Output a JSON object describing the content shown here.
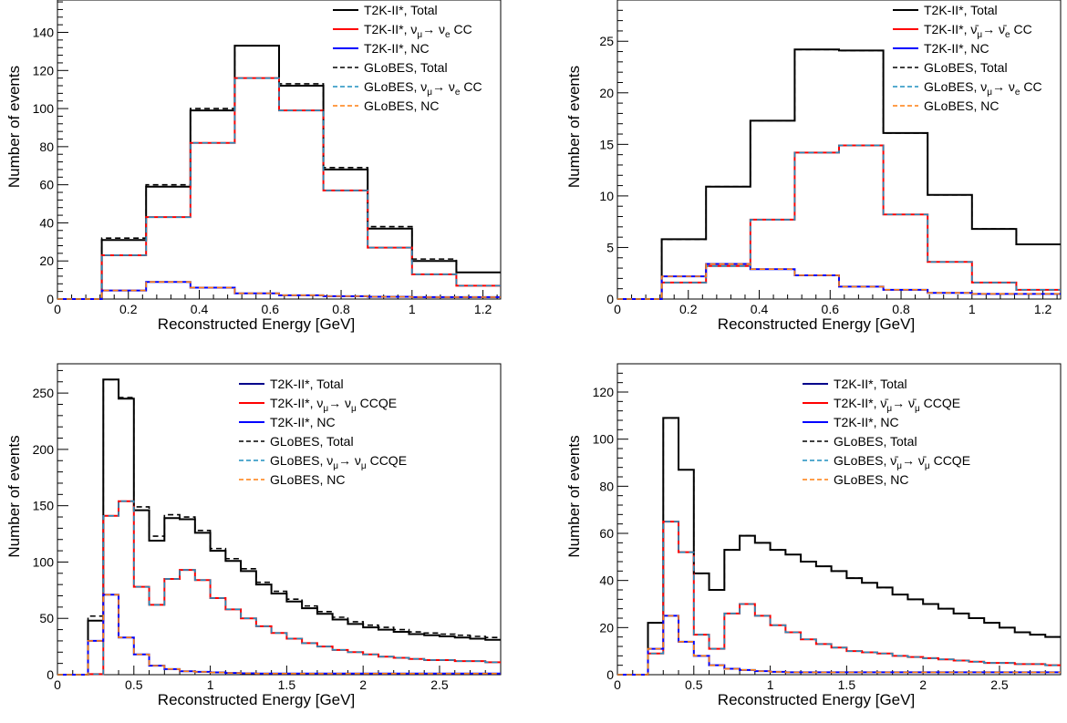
{
  "colors": {
    "total_t2k": "#000000",
    "cc_t2k": "#ff0000",
    "nc_t2k": "#0000ff",
    "total_globes": "#000000",
    "cc_globes": "#1f8fbf",
    "nc_globes": "#ff7f0e"
  },
  "chart_data": [
    {
      "type": "histogram",
      "panel": "top-left",
      "xlabel": "Reconstructed Energy [GeV]",
      "ylabel": "Number of events",
      "xlim": [
        0,
        1.25
      ],
      "ylim": [
        0,
        157
      ],
      "xticks": [
        0,
        0.2,
        0.4,
        0.6,
        0.8,
        1,
        1.2
      ],
      "xtick_labels": [
        "0",
        "0.2",
        "0.4",
        "0.6",
        "0.8",
        "1",
        "1.2"
      ],
      "yticks": [
        0,
        20,
        40,
        60,
        80,
        100,
        120,
        140
      ],
      "ytick_labels": [
        "0",
        "20",
        "40",
        "60",
        "80",
        "100",
        "120",
        "140"
      ],
      "bin_edges": [
        0,
        0.125,
        0.25,
        0.375,
        0.5,
        0.625,
        0.75,
        0.875,
        1.0,
        1.125,
        1.25
      ],
      "legend_placement": "top-right",
      "series": [
        {
          "name": "T2K-II*, Total",
          "style": "solid",
          "color_key": "total_t2k",
          "values": [
            0,
            31,
            59,
            99,
            133,
            112,
            68,
            37,
            20,
            14
          ]
        },
        {
          "name": "T2K-II*, ν​μ→ νe CC",
          "label_parts": [
            "T2K-II*, ν",
            "μ",
            "→ ν",
            "e",
            " CC"
          ],
          "style": "solid",
          "color_key": "cc_t2k",
          "values": [
            0,
            23,
            43,
            82,
            116,
            99,
            57,
            27,
            13,
            7
          ]
        },
        {
          "name": "T2K-II*, NC",
          "style": "solid",
          "color_key": "nc_t2k",
          "values": [
            0,
            4.5,
            9,
            6,
            3,
            2,
            1.5,
            1.2,
            1,
            1
          ]
        },
        {
          "name": "GLoBES, Total",
          "style": "dashed",
          "color_key": "total_globes",
          "values": [
            0,
            32,
            60,
            100,
            133,
            113,
            69,
            38,
            21,
            14
          ]
        },
        {
          "name": "GLoBES, νμ→ νe CC",
          "label_parts": [
            "GLoBES, ν",
            "μ",
            "→ ν",
            "e",
            " CC"
          ],
          "style": "dashed",
          "color_key": "cc_globes",
          "values": [
            0,
            23,
            43,
            82,
            116,
            99,
            57,
            27,
            13,
            7
          ]
        },
        {
          "name": "GLoBES,  NC",
          "style": "dashed",
          "color_key": "nc_globes",
          "values": [
            0,
            4.5,
            9,
            6,
            3,
            2,
            1.5,
            1.2,
            1,
            1
          ]
        }
      ]
    },
    {
      "type": "histogram",
      "panel": "top-right",
      "xlabel": "Reconstructed Energy [GeV]",
      "ylabel": "Number of events",
      "xlim": [
        0,
        1.25
      ],
      "ylim": [
        0,
        29
      ],
      "xticks": [
        0,
        0.2,
        0.4,
        0.6,
        0.8,
        1,
        1.2
      ],
      "xtick_labels": [
        "0",
        "0.2",
        "0.4",
        "0.6",
        "0.8",
        "1",
        "1.2"
      ],
      "yticks": [
        0,
        5,
        10,
        15,
        20,
        25
      ],
      "ytick_labels": [
        "0",
        "5",
        "10",
        "15",
        "20",
        "25"
      ],
      "bin_edges": [
        0,
        0.125,
        0.25,
        0.375,
        0.5,
        0.625,
        0.75,
        0.875,
        1.0,
        1.125,
        1.25
      ],
      "legend_placement": "top-right",
      "series": [
        {
          "name": "T2K-II*, Total",
          "style": "solid",
          "color_key": "total_t2k",
          "values": [
            0,
            5.8,
            10.9,
            17.3,
            24.2,
            24.1,
            16.1,
            10.1,
            6.8,
            5.3
          ]
        },
        {
          "name": "T2K-II*, ν̄μ→ ν̄e CC",
          "label_parts": [
            "T2K-II*, ν̄",
            "μ",
            "→ ν̄",
            "e",
            " CC"
          ],
          "style": "solid",
          "color_key": "cc_t2k",
          "values": [
            0,
            1.6,
            3.2,
            7.7,
            14.2,
            14.9,
            8.2,
            3.6,
            1.6,
            0.9
          ]
        },
        {
          "name": "T2K-II*, NC",
          "style": "solid",
          "color_key": "nc_t2k",
          "values": [
            0,
            2.2,
            3.4,
            2.9,
            2.3,
            1.2,
            0.9,
            0.6,
            0.5,
            0.5
          ]
        },
        {
          "name": "GLoBES, Total",
          "style": "dashed",
          "color_key": "total_globes",
          "values": [
            0,
            5.8,
            10.9,
            17.3,
            24.2,
            24.1,
            16.1,
            10.1,
            6.8,
            5.3
          ]
        },
        {
          "name": "GLoBES, νμ→ νe CC",
          "label_parts": [
            "GLoBES, ν",
            "μ",
            "→ ν",
            "e",
            " CC"
          ],
          "style": "dashed",
          "color_key": "cc_globes",
          "values": [
            0,
            1.6,
            3.2,
            7.7,
            14.2,
            14.9,
            8.2,
            3.6,
            1.6,
            0.9
          ]
        },
        {
          "name": "GLoBES,  NC",
          "style": "dashed",
          "color_key": "nc_globes",
          "values": [
            0,
            2.2,
            3.4,
            2.9,
            2.3,
            1.2,
            0.9,
            0.6,
            0.5,
            0.5
          ]
        }
      ]
    },
    {
      "type": "histogram",
      "panel": "bottom-left",
      "xlabel": "Reconstructed Energy [GeV]",
      "ylabel": "Number of events",
      "xlim": [
        0,
        2.9
      ],
      "ylim": [
        0,
        276
      ],
      "xticks": [
        0,
        0.5,
        1,
        1.5,
        2,
        2.5
      ],
      "xtick_labels": [
        "0",
        "0.5",
        "1",
        "1.5",
        "2",
        "2.5"
      ],
      "yticks": [
        0,
        50,
        100,
        150,
        200,
        250
      ],
      "ytick_labels": [
        "0",
        "50",
        "100",
        "150",
        "200",
        "250"
      ],
      "bin_edges": [
        0,
        0.1,
        0.2,
        0.3,
        0.4,
        0.5,
        0.6,
        0.7,
        0.8,
        0.9,
        1.0,
        1.1,
        1.2,
        1.3,
        1.4,
        1.5,
        1.6,
        1.7,
        1.8,
        1.9,
        2.0,
        2.1,
        2.2,
        2.3,
        2.4,
        2.5,
        2.6,
        2.7,
        2.8,
        2.9
      ],
      "legend_placement": "top-right",
      "series": [
        {
          "name": "T2K-II*, Total",
          "style": "solid",
          "color_key": "nc_t2k",
          "legend_color": "#00008b",
          "line_color": "#000000",
          "values": [
            0,
            0,
            48,
            262,
            245,
            146,
            119,
            139,
            138,
            126,
            110,
            101,
            92,
            80,
            72,
            65,
            59,
            54,
            49,
            45,
            42,
            40,
            38,
            36,
            35,
            34,
            33,
            32,
            31
          ]
        },
        {
          "name": "T2K-II*, νμ→ νμ CCQE",
          "label_parts": [
            "T2K-II*, ν",
            "μ",
            "→ ν",
            "μ",
            " CCQE"
          ],
          "style": "solid",
          "color_key": "cc_t2k",
          "values": [
            0,
            0,
            0.5,
            141,
            154,
            78,
            62,
            85,
            93,
            84,
            68,
            58,
            50,
            43,
            37,
            32,
            28,
            25,
            22,
            20,
            18,
            16,
            15,
            14,
            13,
            13,
            12,
            12,
            11
          ]
        },
        {
          "name": "T2K-II*, NC",
          "style": "solid",
          "color_key": "nc_t2k",
          "values": [
            0,
            0,
            30,
            71,
            33,
            18,
            8,
            5,
            3,
            2.5,
            2,
            1.5,
            1.2,
            1,
            1,
            1,
            1,
            1,
            1,
            1,
            1,
            1,
            1,
            1,
            1,
            1,
            1,
            1,
            1
          ]
        },
        {
          "name": "GLoBES, Total",
          "style": "dashed",
          "color_key": "total_globes",
          "values": [
            0,
            0,
            52,
            262,
            246,
            149,
            123,
            142,
            140,
            128,
            112,
            103,
            94,
            82,
            74,
            67,
            61,
            56,
            51,
            47,
            44,
            42,
            40,
            38,
            37,
            36,
            35,
            34,
            33
          ]
        },
        {
          "name": "GLoBES, νμ→ νμ CCQE",
          "label_parts": [
            "GLoBES, ν",
            "μ",
            "→ ν",
            "μ",
            " CCQE"
          ],
          "style": "dashed",
          "color_key": "cc_globes",
          "values": [
            0,
            0,
            0.5,
            141,
            154,
            78,
            62,
            85,
            93,
            84,
            68,
            58,
            50,
            43,
            37,
            32,
            28,
            25,
            22,
            20,
            18,
            16,
            15,
            14,
            13,
            13,
            12,
            12,
            11
          ]
        },
        {
          "name": "GLoBES, NC",
          "style": "dashed",
          "color_key": "nc_globes",
          "values": [
            0,
            0,
            30,
            71,
            33,
            18,
            8,
            5,
            3,
            2.5,
            2,
            1.5,
            1.2,
            1,
            1,
            1,
            1,
            1,
            1,
            1,
            1,
            1,
            1,
            1,
            1,
            1,
            1,
            1,
            1
          ]
        }
      ]
    },
    {
      "type": "histogram",
      "panel": "bottom-right",
      "xlabel": "Reconstructed Energy [GeV]",
      "ylabel": "Number of events",
      "xlim": [
        0,
        2.9
      ],
      "ylim": [
        0,
        132
      ],
      "xticks": [
        0,
        0.5,
        1,
        1.5,
        2,
        2.5
      ],
      "xtick_labels": [
        "0",
        "0.5",
        "1",
        "1.5",
        "2",
        "2.5"
      ],
      "yticks": [
        0,
        20,
        40,
        60,
        80,
        100,
        120
      ],
      "ytick_labels": [
        "0",
        "20",
        "40",
        "60",
        "80",
        "100",
        "120"
      ],
      "bin_edges": [
        0,
        0.1,
        0.2,
        0.3,
        0.4,
        0.5,
        0.6,
        0.7,
        0.8,
        0.9,
        1.0,
        1.1,
        1.2,
        1.3,
        1.4,
        1.5,
        1.6,
        1.7,
        1.8,
        1.9,
        2.0,
        2.1,
        2.2,
        2.3,
        2.4,
        2.5,
        2.6,
        2.7,
        2.8,
        2.9
      ],
      "legend_placement": "top-right",
      "series": [
        {
          "name": "T2K-II*, Total",
          "style": "solid",
          "color_key": "nc_t2k",
          "legend_color": "#00008b",
          "line_color": "#000000",
          "values": [
            0,
            0,
            22,
            109,
            87,
            43,
            36,
            53,
            59,
            56,
            53,
            51,
            48,
            46,
            44,
            41,
            39,
            37,
            34,
            32,
            30,
            28,
            26,
            24,
            22,
            20,
            18,
            17,
            16
          ]
        },
        {
          "name": "T2K-II*, ν̄μ→ ν̄μ CCQE",
          "label_parts": [
            "T2K-II*, ν̄",
            "μ",
            "→ ν̄",
            "μ",
            " CCQE"
          ],
          "style": "solid",
          "color_key": "cc_t2k",
          "values": [
            0,
            0,
            9,
            65,
            52,
            17,
            11,
            26,
            30,
            25,
            21,
            18,
            15,
            13,
            11.5,
            10,
            9.5,
            9,
            8,
            7.5,
            7,
            6.5,
            6,
            5.5,
            5,
            5,
            4.5,
            4.5,
            4
          ]
        },
        {
          "name": "T2K-II*, NC",
          "style": "solid",
          "color_key": "nc_t2k",
          "values": [
            0,
            0,
            11,
            25,
            14,
            8,
            4,
            2.5,
            2,
            1.5,
            1.2,
            1,
            1,
            1,
            1,
            1,
            1,
            1,
            1,
            1,
            1,
            1,
            1,
            1,
            1,
            1,
            1,
            1,
            1
          ]
        },
        {
          "name": "GLoBES, Total",
          "style": "dashed",
          "color_key": "total_globes",
          "values": [
            0,
            0,
            22,
            109,
            87,
            43,
            36,
            53,
            59,
            56,
            53,
            51,
            48,
            46,
            44,
            41,
            39,
            37,
            34,
            32,
            30,
            28,
            26,
            24,
            22,
            20,
            18,
            17,
            16
          ]
        },
        {
          "name": "GLoBES, ν̄μ→ ν̄μ CCQE",
          "label_parts": [
            "GLoBES, ν̄",
            "μ",
            "→ ν̄",
            "μ",
            " CCQE"
          ],
          "style": "dashed",
          "color_key": "cc_globes",
          "values": [
            0,
            0,
            9,
            65,
            52,
            17,
            11,
            26,
            30,
            25,
            21,
            18,
            15,
            13,
            11.5,
            10,
            9.5,
            9,
            8,
            7.5,
            7,
            6.5,
            6,
            5.5,
            5,
            5,
            4.5,
            4.5,
            4
          ]
        },
        {
          "name": "GLoBES, NC",
          "style": "dashed",
          "color_key": "nc_globes",
          "values": [
            0,
            0,
            11,
            25,
            14,
            8,
            4,
            2.5,
            2,
            1.5,
            1.2,
            1,
            1,
            1,
            1,
            1,
            1,
            1,
            1,
            1,
            1,
            1,
            1,
            1,
            1,
            1,
            1,
            1,
            1
          ]
        }
      ]
    }
  ]
}
